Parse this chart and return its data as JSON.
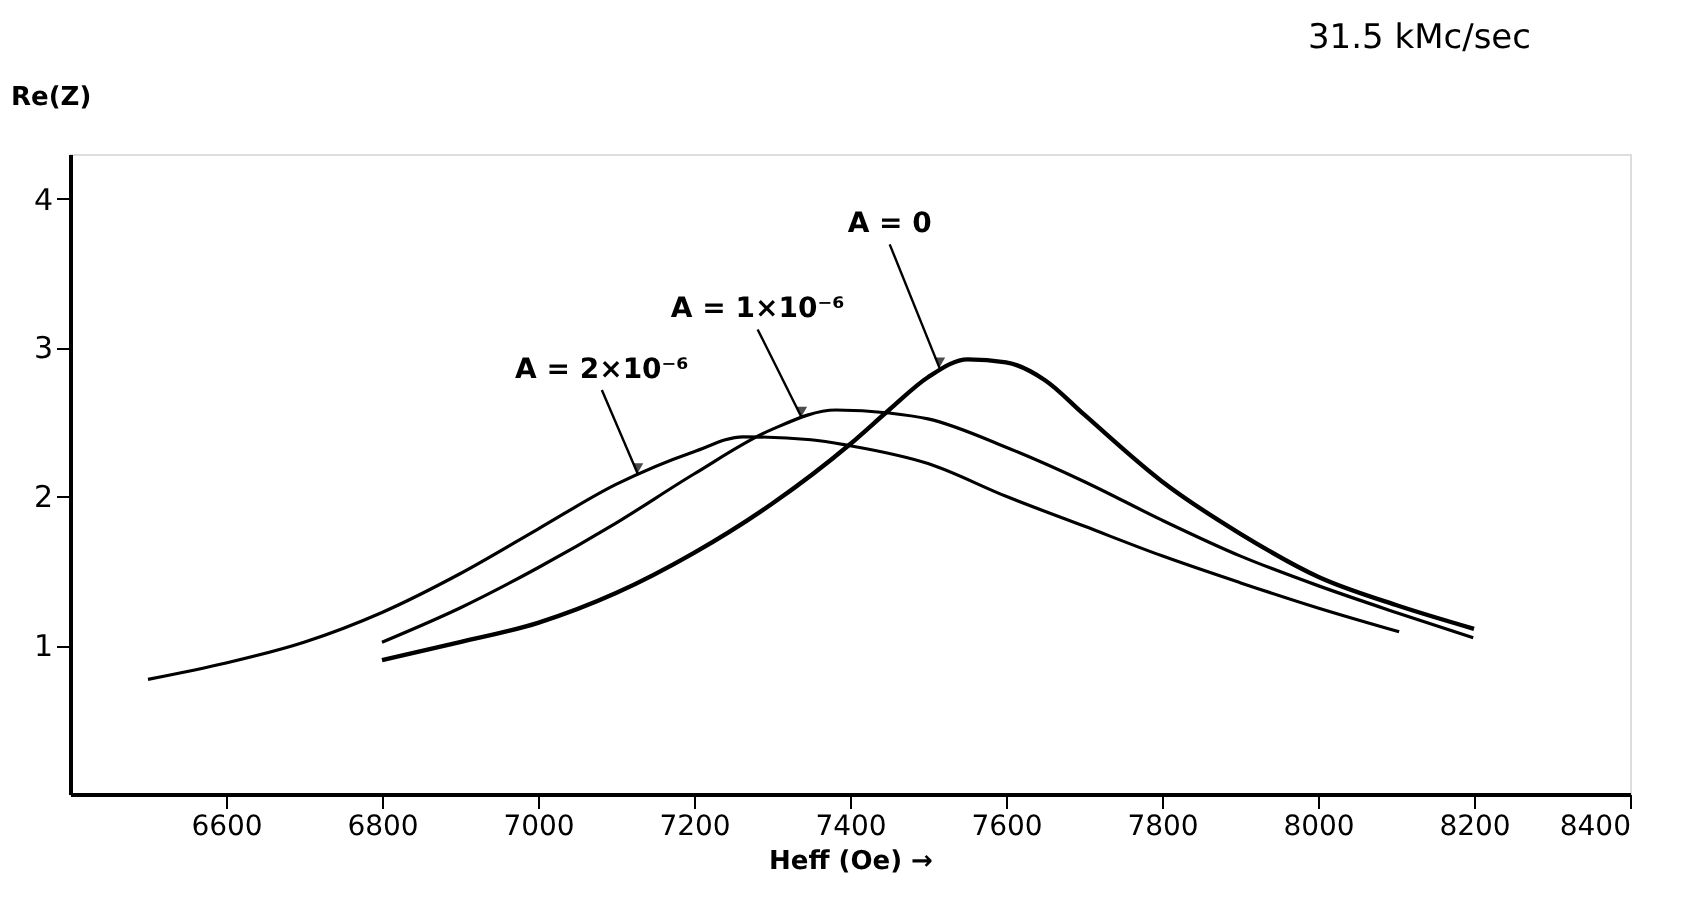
{
  "chart_data": {
    "type": "line",
    "title": "31.5 kMc/sec",
    "xlabel": "Heff (Oe) →",
    "ylabel": "Re(Z)",
    "xlim": [
      6400,
      8400
    ],
    "xticks": [
      6600,
      6800,
      7000,
      7200,
      7400,
      7600,
      7800,
      8000,
      8200,
      8400
    ],
    "ylim": [
      0,
      4.3
    ],
    "yticks": [
      1,
      2,
      3,
      4
    ],
    "grid": false,
    "legend": false,
    "marker": "none",
    "line_style": "solid",
    "series": [
      {
        "color": "#000000",
        "x": [
          6500,
          6600,
          6700,
          6800,
          6900,
          7000,
          7100,
          7200,
          7263,
          7350,
          7400,
          7500,
          7600,
          7700,
          7800,
          7900,
          8000,
          8104
        ],
        "values": [
          0.77,
          0.88,
          1.02,
          1.22,
          1.48,
          1.78,
          2.08,
          2.3,
          2.4,
          2.38,
          2.34,
          2.22,
          2.0,
          1.8,
          1.6,
          1.42,
          1.25,
          1.09
        ]
      },
      {
        "color": "#000000",
        "x": [
          6800,
          6900,
          7000,
          7100,
          7200,
          7300,
          7382,
          7450,
          7500,
          7600,
          7700,
          7800,
          7900,
          8000,
          8100,
          8199
        ],
        "values": [
          1.02,
          1.25,
          1.52,
          1.82,
          2.15,
          2.45,
          2.58,
          2.56,
          2.52,
          2.33,
          2.1,
          1.84,
          1.6,
          1.4,
          1.22,
          1.05
        ]
      },
      {
        "color": "#000000",
        "x": [
          6800,
          6900,
          7000,
          7100,
          7200,
          7300,
          7400,
          7450,
          7500,
          7551,
          7600,
          7650,
          7700,
          7800,
          7900,
          8000,
          8100,
          8200
        ],
        "values": [
          0.9,
          1.02,
          1.15,
          1.35,
          1.62,
          1.95,
          2.35,
          2.58,
          2.8,
          2.92,
          2.9,
          2.78,
          2.55,
          2.1,
          1.75,
          1.46,
          1.27,
          1.11
        ]
      }
    ],
    "annotations": [
      {
        "text": "A = 2×10⁻⁶",
        "x": 7128,
        "y": 2.15
      },
      {
        "text": "A = 1×10⁻⁶",
        "x": 7338,
        "y": 2.53
      },
      {
        "text": "A = 0",
        "x": 7515,
        "y": 2.86
      }
    ]
  }
}
